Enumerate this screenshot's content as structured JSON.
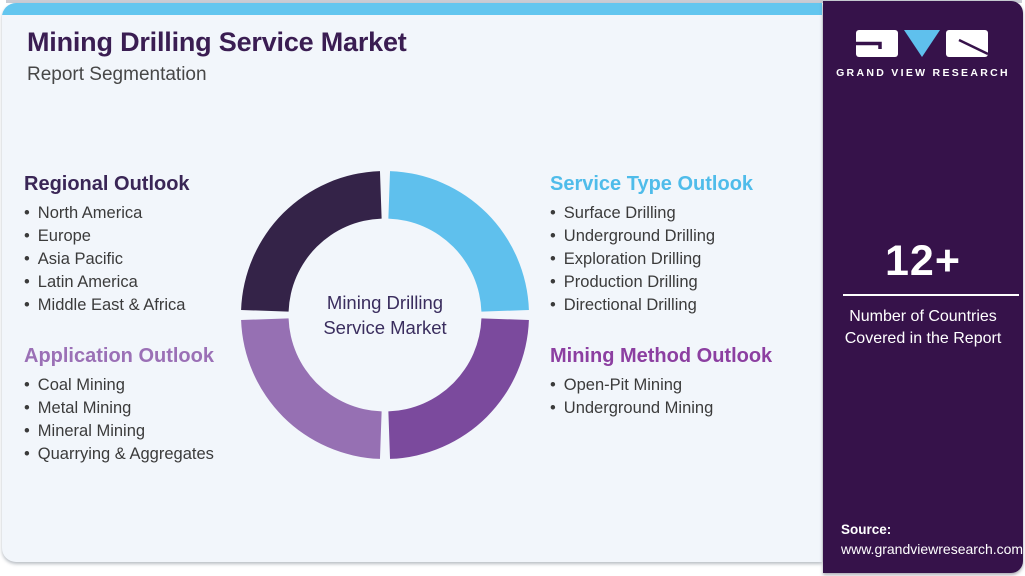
{
  "header": {
    "title": "Mining Drilling Service Market",
    "subtitle": "Report Segmentation"
  },
  "sections": {
    "regional": {
      "heading": "Regional Outlook",
      "color": "#3A2656",
      "items": [
        "North America",
        "Europe",
        "Asia Pacific",
        "Latin America",
        "Middle East & Africa"
      ]
    },
    "application": {
      "heading": "Application Outlook",
      "color": "#9B70B6",
      "items": [
        "Coal Mining",
        "Metal Mining",
        "Mineral Mining",
        "Quarrying & Aggregates"
      ]
    },
    "service_type": {
      "heading": "Service Type Outlook",
      "color": "#4FBCEA",
      "items": [
        "Surface Drilling",
        "Underground Drilling",
        "Exploration Drilling",
        "Production Drilling",
        "Directional Drilling"
      ]
    },
    "mining_method": {
      "heading": "Mining Method Outlook",
      "color": "#8C3FA1",
      "items": [
        "Open-Pit Mining",
        "Underground Mining"
      ]
    }
  },
  "chart_data": {
    "type": "pie",
    "subtype": "donut",
    "title": "",
    "center_label": "Mining Drilling Service Market",
    "start_angle_deg": 0,
    "direction": "clockwise",
    "inner_radius_ratio": 0.67,
    "gap_degrees": 4,
    "legend_position": "none",
    "slices": [
      {
        "label": "Service Type Outlook",
        "value": 25,
        "color": "#5FC0ED"
      },
      {
        "label": "Mining Method Outlook",
        "value": 25,
        "color": "#7B4A9D"
      },
      {
        "label": "Application Outlook",
        "value": 25,
        "color": "#9670B3"
      },
      {
        "label": "Regional Outlook",
        "value": 25,
        "color": "#342348"
      }
    ]
  },
  "sidebar": {
    "brand": "GRAND VIEW RESEARCH",
    "stat_value": "12+",
    "stat_label": "Number of Countries Covered in the Report",
    "source_label": "Source:",
    "source_url": "www.grandviewresearch.com"
  },
  "colors": {
    "accent_blue": "#63C6EF",
    "sidebar_bg": "#36124A",
    "card_bg": "#F2F6FB",
    "title_purple": "#3A1D52",
    "body_text": "#3B3B3B",
    "logo_triangle_blue": "#5FC0ED"
  }
}
